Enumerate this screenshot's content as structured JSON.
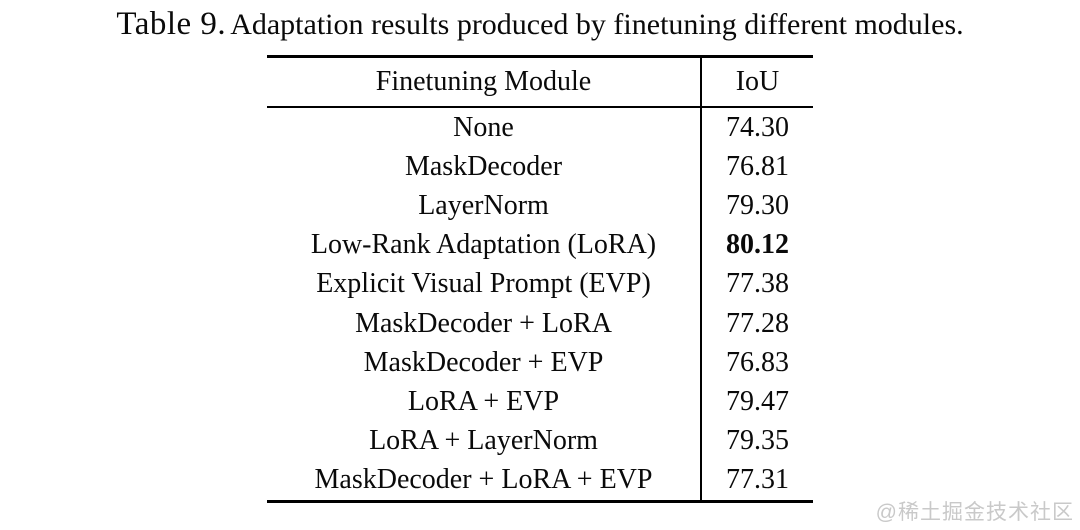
{
  "caption": {
    "label": "Table 9.",
    "text": "Adaptation results produced by finetuning different modules."
  },
  "table": {
    "headers": {
      "module": "Finetuning Module",
      "iou": "IoU"
    },
    "rows": [
      {
        "module": "None",
        "iou": "74.30",
        "bold": false
      },
      {
        "module": "MaskDecoder",
        "iou": "76.81",
        "bold": false
      },
      {
        "module": "LayerNorm",
        "iou": "79.30",
        "bold": false
      },
      {
        "module": "Low-Rank Adaptation (LoRA)",
        "iou": "80.12",
        "bold": true
      },
      {
        "module": "Explicit Visual Prompt (EVP)",
        "iou": "77.38",
        "bold": false
      },
      {
        "module": "MaskDecoder + LoRA",
        "iou": "77.28",
        "bold": false
      },
      {
        "module": "MaskDecoder + EVP",
        "iou": "76.83",
        "bold": false
      },
      {
        "module": "LoRA + EVP",
        "iou": "79.47",
        "bold": false
      },
      {
        "module": "LoRA + LayerNorm",
        "iou": "79.35",
        "bold": false
      },
      {
        "module": "MaskDecoder + LoRA + EVP",
        "iou": "77.31",
        "bold": false
      }
    ]
  },
  "watermark": "@稀土掘金技术社区",
  "colors": {
    "text": "#0a0a0a",
    "rule": "#000000",
    "watermark": "#c9c9c9",
    "background": "#ffffff"
  },
  "chart_data": {
    "type": "table",
    "title": "Table 9. Adaptation results produced by finetuning different modules.",
    "columns": [
      "Finetuning Module",
      "IoU"
    ],
    "categories": [
      "None",
      "MaskDecoder",
      "LayerNorm",
      "Low-Rank Adaptation (LoRA)",
      "Explicit Visual Prompt (EVP)",
      "MaskDecoder + LoRA",
      "MaskDecoder + EVP",
      "LoRA + EVP",
      "LoRA + LayerNorm",
      "MaskDecoder + LoRA + EVP"
    ],
    "values": [
      74.3,
      76.81,
      79.3,
      80.12,
      77.38,
      77.28,
      76.83,
      79.47,
      79.35,
      77.31
    ],
    "best_value_index": 3
  }
}
